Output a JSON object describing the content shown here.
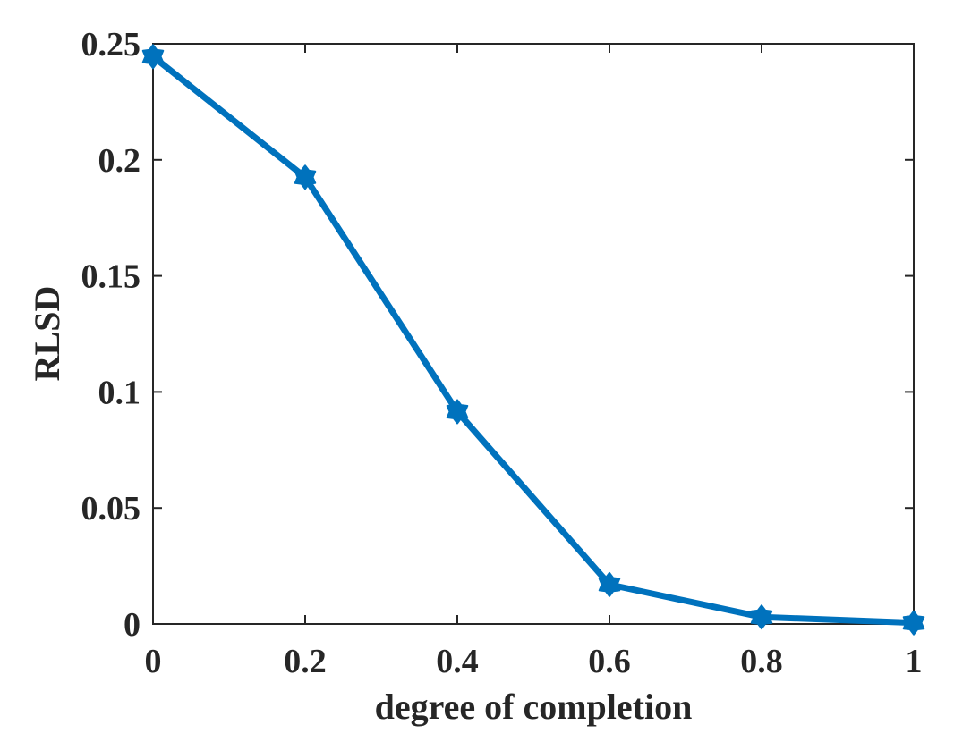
{
  "chart_data": {
    "type": "line",
    "title": "",
    "xlabel": "degree of completion",
    "ylabel": "RLSD",
    "xlim": [
      0,
      1
    ],
    "ylim": [
      0,
      0.25
    ],
    "xticks": [
      "0",
      "0.2",
      "0.4",
      "0.6",
      "0.8",
      "1"
    ],
    "yticks": [
      "0",
      "0.05",
      "0.1",
      "0.15",
      "0.2",
      "0.25"
    ],
    "grid": false,
    "series": [
      {
        "color": "#0072BD",
        "marker": "hexagram",
        "x": [
          0,
          0.2,
          0.4,
          0.6,
          0.8,
          1.0
        ],
        "y": [
          0.2445,
          0.1925,
          0.0915,
          0.017,
          0.003,
          0.0005
        ]
      }
    ]
  }
}
